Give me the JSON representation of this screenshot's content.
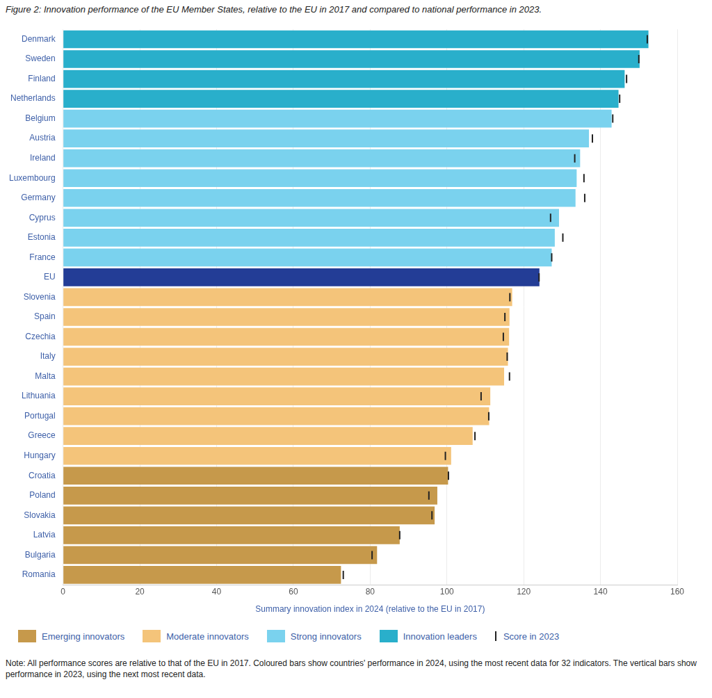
{
  "chart_data": {
    "type": "bar",
    "orientation": "horizontal",
    "title": "Figure 2: Innovation performance of the EU Member States, relative to the EU in 2017 and compared to national performance in 2023.",
    "x_label": "Summary innovation index in 2024 (relative to the EU in 2017)",
    "note": "Note: All performance scores are relative to that of the EU in 2017. Coloured bars show countries' performance in 2024, using the most recent data for 32 indicators. The vertical bars show performance in 2023, using the next most recent data.",
    "categories": [
      "Denmark",
      "Sweden",
      "Finland",
      "Netherlands",
      "Belgium",
      "Austria",
      "Ireland",
      "Luxembourg",
      "Germany",
      "Cyprus",
      "Estonia",
      "France",
      "EU",
      "Slovenia",
      "Spain",
      "Czechia",
      "Italy",
      "Malta",
      "Lithuania",
      "Portugal",
      "Greece",
      "Hungary",
      "Croatia",
      "Poland",
      "Slovakia",
      "Latvia",
      "Bulgaria",
      "Romania"
    ],
    "values": [
      152.5,
      150.2,
      146.3,
      144.7,
      142.9,
      137.0,
      134.7,
      133.8,
      133.5,
      129.2,
      128.1,
      127.3,
      124.1,
      117.0,
      116.3,
      116.2,
      115.9,
      114.9,
      111.3,
      111.0,
      106.7,
      101.1,
      100.3,
      97.5,
      96.8,
      87.7,
      81.8,
      72.4
    ],
    "colors": [
      "#29afcb",
      "#29afcb",
      "#29afcb",
      "#29afcb",
      "#7ad2ee",
      "#7ad2ee",
      "#7ad2ee",
      "#7ad2ee",
      "#7ad2ee",
      "#7ad2ee",
      "#7ad2ee",
      "#7ad2ee",
      "#233d96",
      "#f4c47a",
      "#f4c47a",
      "#f4c47a",
      "#f4c47a",
      "#f4c47a",
      "#f4c47a",
      "#f4c47a",
      "#f4c47a",
      "#f4c47a",
      "#c6994b",
      "#c6994b",
      "#c6994b",
      "#c6994b",
      "#c6994b",
      "#c6994b"
    ],
    "groups": [
      {
        "name": "Emerging innovators",
        "color": "#c6994b"
      },
      {
        "name": "Moderate innovators",
        "color": "#f4c47a"
      },
      {
        "name": "Strong innovators",
        "color": "#7ad2ee"
      },
      {
        "name": "Innovation leaders",
        "color": "#29afcb"
      }
    ],
    "series": [
      {
        "name": "Score in 2023",
        "type": "scatter",
        "marker": "line",
        "color": "#222222",
        "values": [
          152.2,
          150.0,
          146.8,
          145.0,
          143.2,
          137.9,
          133.3,
          135.7,
          135.9,
          127.0,
          130.2,
          127.3,
          124.0,
          116.4,
          115.1,
          114.7,
          115.7,
          116.3,
          108.9,
          110.9,
          107.3,
          99.6,
          100.4,
          95.3,
          96.1,
          87.7,
          80.5,
          73.0
        ]
      }
    ],
    "xlim": [
      0,
      160
    ],
    "xticks": [
      0,
      20,
      40,
      60,
      80,
      100,
      120,
      140,
      160
    ],
    "grid": true,
    "legend": "bottom"
  }
}
